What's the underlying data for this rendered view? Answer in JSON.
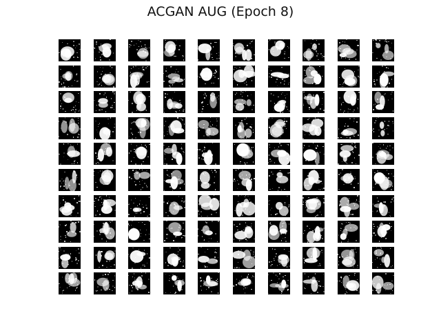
{
  "figure": {
    "title": "ACGAN AUG (Epoch 8)",
    "rows": 10,
    "cols": 10,
    "tile_colors": {
      "background": "#000000",
      "foreground": "#ffffff"
    }
  }
}
